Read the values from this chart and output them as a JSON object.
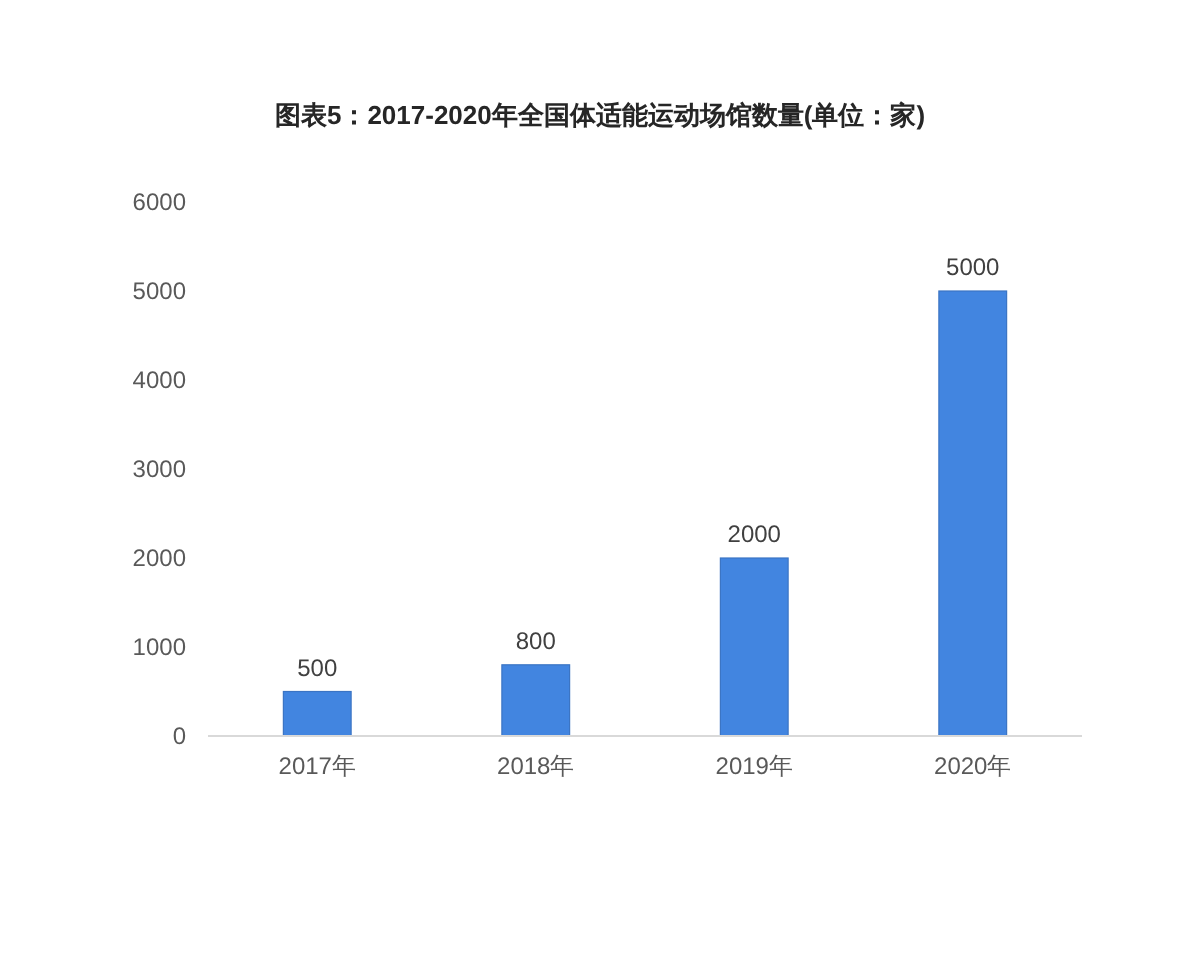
{
  "chart_data": {
    "type": "bar",
    "title": "图表5：2017-2020年全国体适能运动场馆数量(单位：家)",
    "categories": [
      "2017年",
      "2018年",
      "2019年",
      "2020年"
    ],
    "values": [
      500,
      800,
      2000,
      5000
    ],
    "color": "#4285e0",
    "ylim": [
      0,
      6000
    ],
    "yticks": [
      0,
      1000,
      2000,
      3000,
      4000,
      5000,
      6000
    ],
    "data_labels": true
  }
}
